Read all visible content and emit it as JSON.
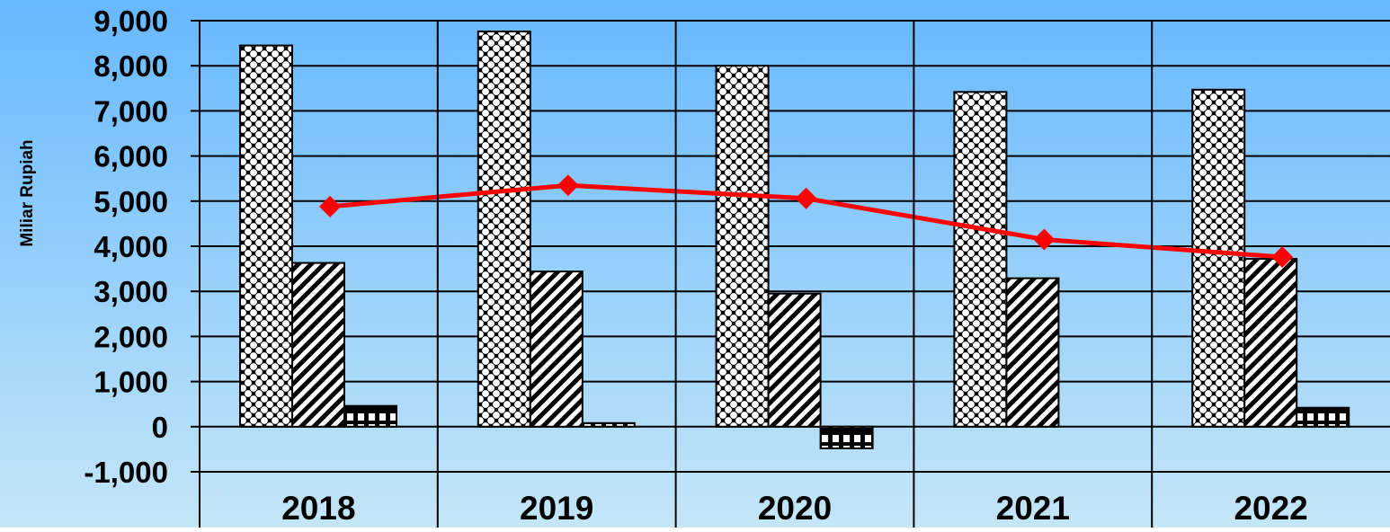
{
  "chart_data": {
    "type": "bar",
    "title": "",
    "xlabel": "",
    "ylabel": "Miliar Rupiah",
    "ylim": [
      -1000,
      9000
    ],
    "yticks": [
      -1000,
      0,
      1000,
      2000,
      3000,
      4000,
      5000,
      6000,
      7000,
      8000,
      9000
    ],
    "ytick_labels": [
      "-1,000",
      "0",
      "1,000",
      "2,000",
      "3,000",
      "4,000",
      "5,000",
      "6,000",
      "7,000",
      "8,000",
      "9,000"
    ],
    "categories": [
      "2018",
      "2019",
      "2020",
      "2021",
      "2022"
    ],
    "grid": true,
    "legend": "none",
    "series": [
      {
        "kind": "bar",
        "pattern": "checker-dots",
        "values": [
          8450,
          8760,
          8000,
          7420,
          7470
        ]
      },
      {
        "kind": "bar",
        "pattern": "diagonal-stripes",
        "values": [
          3630,
          3440,
          2950,
          3290,
          3720
        ]
      },
      {
        "kind": "bar",
        "pattern": "brick-grid",
        "values": [
          460,
          80,
          -480,
          0,
          420
        ]
      },
      {
        "kind": "line",
        "color": "#ff0000",
        "marker": "diamond",
        "values": [
          4880,
          5350,
          5060,
          4150,
          3760
        ]
      }
    ],
    "colors": {
      "background_top": "#66b8ff",
      "background_bottom": "#c4e6f7",
      "line": "#ff0000",
      "axis": "#000000"
    }
  }
}
